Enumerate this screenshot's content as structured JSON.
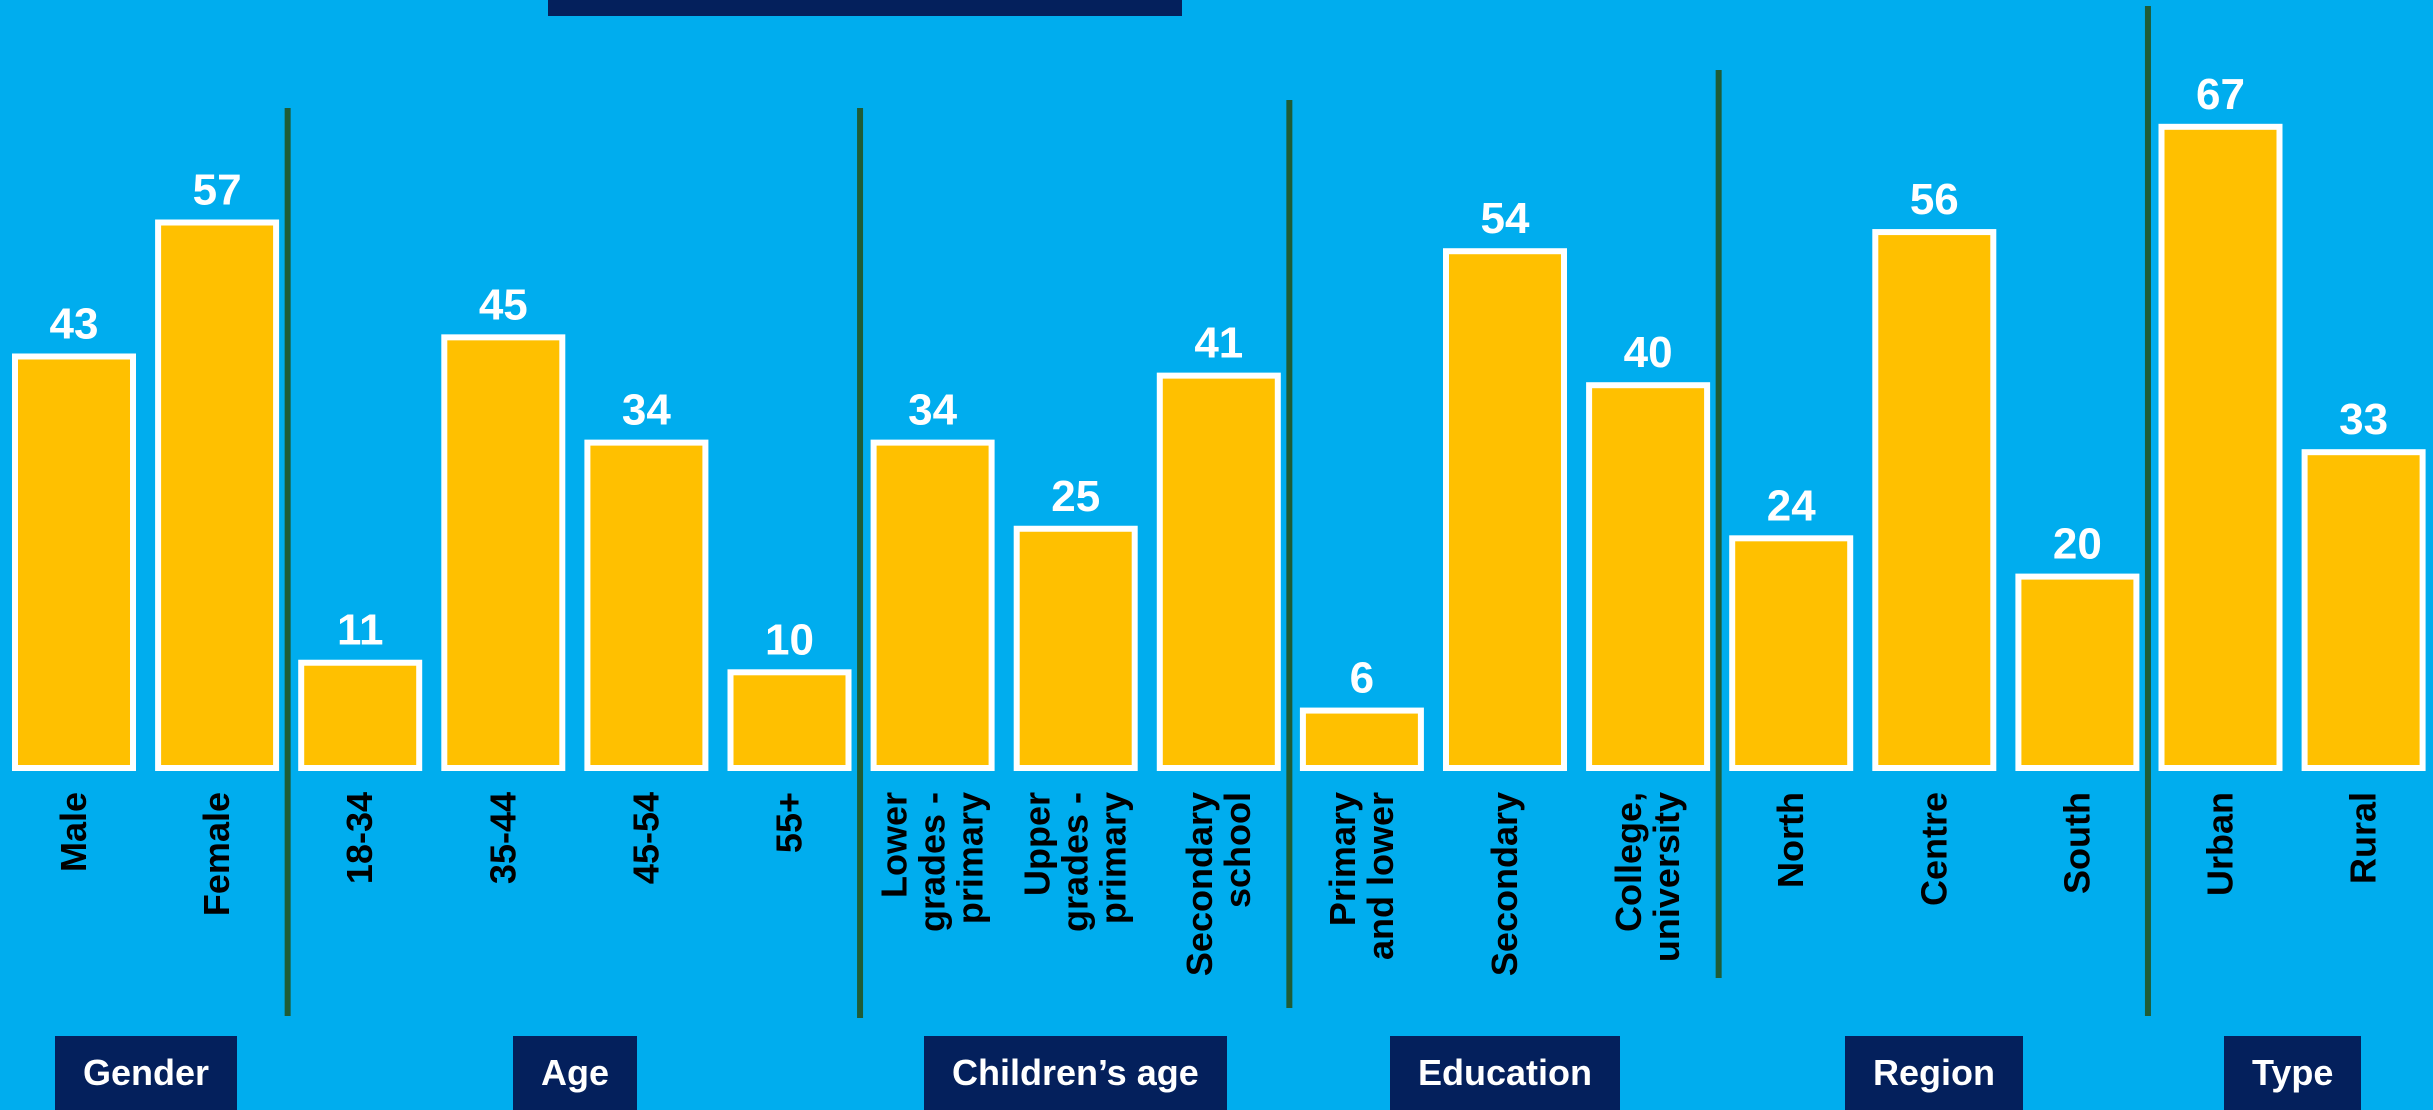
{
  "colors": {
    "background": "#00ADEE",
    "bar_fill": "#FFC000",
    "bar_stroke": "#FFFFFF",
    "separator": "#1F5C36",
    "label_box": "#04205C",
    "value_text": "#FFFFFF",
    "category_text": "#000000"
  },
  "chart_data": {
    "type": "bar",
    "title": "",
    "xlabel": "",
    "ylabel": "",
    "ylim": [
      0,
      80
    ],
    "grid": false,
    "legend": "none",
    "categories": [
      [
        "Male"
      ],
      [
        "Female"
      ],
      [
        "18-34"
      ],
      [
        "35-44"
      ],
      [
        "45-54"
      ],
      [
        "55+"
      ],
      [
        "Lower",
        "grades -",
        "primary"
      ],
      [
        "Upper",
        "grades -",
        "primary"
      ],
      [
        "Secondary",
        "school"
      ],
      [
        "Primary",
        "and lower"
      ],
      [
        "Secondary"
      ],
      [
        "College,",
        "university"
      ],
      [
        "North"
      ],
      [
        "Centre"
      ],
      [
        "South"
      ],
      [
        "Urban"
      ],
      [
        "Rural"
      ]
    ],
    "values": [
      43,
      57,
      11,
      45,
      34,
      10,
      34,
      25,
      41,
      6,
      54,
      40,
      24,
      56,
      20,
      67,
      33
    ],
    "groups": [
      {
        "label": "Gender",
        "count": 2
      },
      {
        "label": "Age",
        "count": 4
      },
      {
        "label": "Children’s age",
        "count": 3
      },
      {
        "label": "Education",
        "count": 3
      },
      {
        "label": "Region",
        "count": 3
      },
      {
        "label": "Type",
        "count": 2
      }
    ]
  }
}
